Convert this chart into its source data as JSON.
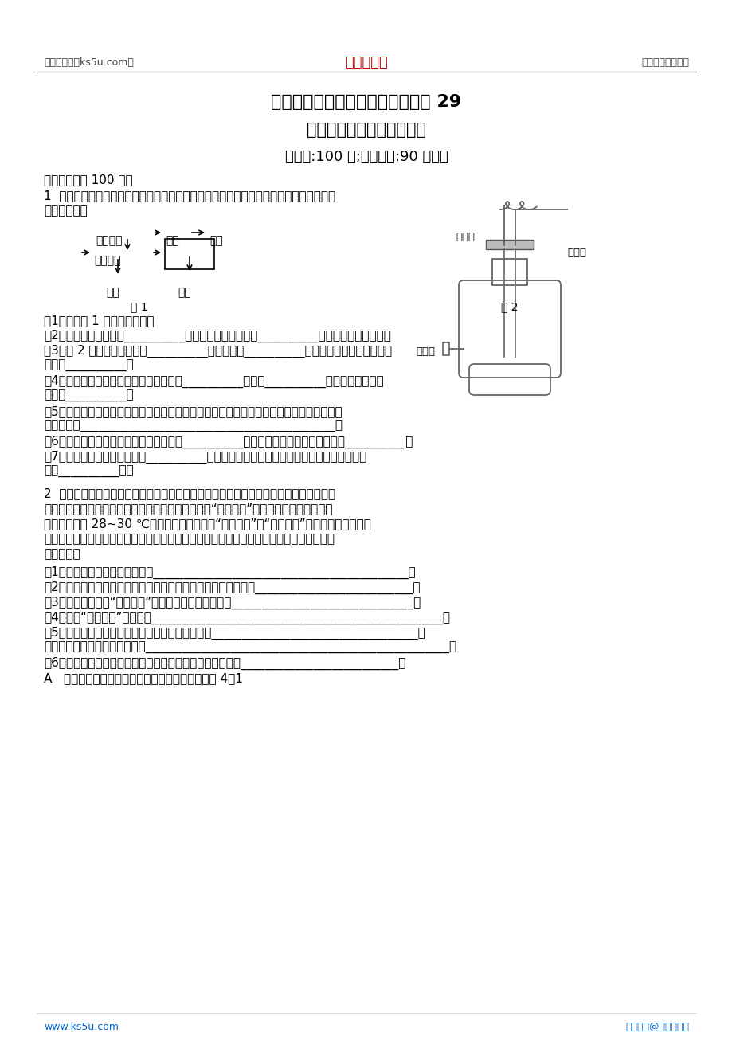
{
  "bg_color": "#ffffff",
  "header_left": "高考资源网（ks5u.com）",
  "header_center": "高考资源网",
  "header_right": "您身边的高考专家",
  "header_center_color": "#cc0000",
  "title1": "山东省新人教版生物高三单元测试 29",
  "title2": "《生物技术实践模块综合》",
  "title3": "（满分:100 分;考试时间:90 分钟）",
  "section_label": "非选择题（共 100 分）",
  "q1_line1": "1  下面是果酒和果醜制作的实验流程和某同学设计的果酒和果醜的发酵装置。根据图示回",
  "q1_line2": "答下列问题：",
  "fig1_label": "图 1",
  "fig2_label": "图 2",
  "fig2_chongqikou": "充气口",
  "fig2_paiqikou": "排气口",
  "fig2_churaliakou": "出料口",
  "flow_row1_a": "挑选葡萄",
  "flow_row1_b": "冲洗",
  "flow_row1_c": "榨汁",
  "flow_row2_a": "酒精发酵",
  "flow_fruit_wine": "果酒",
  "flow_fruit_vinegar": "果醜",
  "q1_subs": [
    "（1）完成图 1 中的实验流程。",
    "（2）冲洗的主要目的是__________，冲洗应特别注意不能__________，以防止菌种的流失。",
    "（3）图 2 装置中的充气口在__________时关闭，在__________时连接充气泵，并连续不断",
    "地向内__________。",
    "（4）排气口在果酒发酵时排出的气体是由__________产生的__________，在果醜发酵时排",
    "出的是__________。",
    "（5）若在果汁中只含有醜酸菌，在果酒发酵旺盛时，醜酸菌能否将果汁中的糖发酵为醜酸？",
    "说明原因：__________________________________________。",
    "（6）在酒精发酵时瓶内温度一般应控制为__________。醜酸发酵时温度一般应控制为__________。",
    "（7）果酒制作完成后，可以用__________来检测酒精的生成，在酸性条件下，酒精与之反应",
    "呼现__________色。"
  ],
  "q2_lines": [
    "2  农村中泡菜的制作方法是：新鲜的衔菜经过整理、清洗后，放入彻底清洗并用白酒擦拭",
    "过的泡菜坛中，然后向坛中加入盐水、香辛料及一些“陈泡菜水”。密封后置于阴凉处，最",
    "适环境温度为 28~30 ℃。有时制作的泡菜会“咸而不酸”或“酸而不成”，前者是用盐过多，",
    "后者是用盐太少。在实验室或工厂化生产泡菜时，还要跟踪检测泡菜腌制过程中产生的亚硝",
    "酸盐含量。"
  ],
  "q2_subs": [
    "（1）用白酒擦拭泡菜坛的目的是__________________________________________。",
    "（2）菜坛为什么要密封？若菜坛有裂缝，可能会出现什么结果？__________________________。",
    "（3）若制作的泡菜“咸而不酸”，最可能的原因是什么？______________________________。",
    "（4）加入“陈泡菜水”的作用是________________________________________________。",
    "（5）制作泡菜的过程中，有机物的干重如何变化？__________________________________。",
    "菜坛内有机物的种类如何变化？__________________________________________________。",
    "（6）关于测定亚硝酸盐含量实验操作的有关叙述，正确的是__________________________。",
    "A   泡菜制作需要配制盐水，其中盐与水的质量比为 4：1"
  ],
  "footer_left": "www.ks5u.com",
  "footer_left_color": "#0066cc",
  "footer_right": "版权所有@高考资源网",
  "footer_right_color": "#0066cc"
}
